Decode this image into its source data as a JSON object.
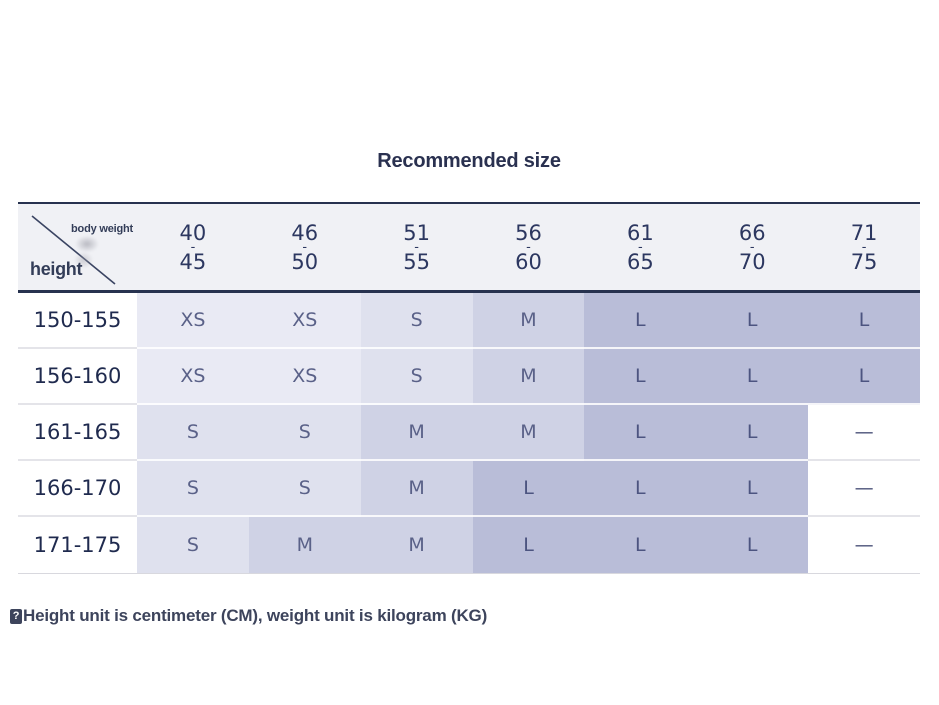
{
  "title": "Recommended size",
  "corner": {
    "top_label": "body weight",
    "bottom_label": "height"
  },
  "note": {
    "marker": "?",
    "text": "Height unit is centimeter (CM), weight unit is kilogram (KG)"
  },
  "chart_data": {
    "type": "table",
    "title": "Recommended size",
    "columns": [
      "40-45",
      "46-50",
      "51-55",
      "56-60",
      "61-65",
      "66-70",
      "71-75"
    ],
    "column_axis_label": "body weight",
    "row_axis_label": "height",
    "rows": [
      "150-155",
      "156-160",
      "161-165",
      "166-170",
      "171-175"
    ],
    "values": [
      [
        "XS",
        "XS",
        "S",
        "M",
        "L",
        "L",
        "L"
      ],
      [
        "XS",
        "XS",
        "S",
        "M",
        "L",
        "L",
        "L"
      ],
      [
        "S",
        "S",
        "M",
        "M",
        "L",
        "L",
        "—"
      ],
      [
        "S",
        "S",
        "M",
        "L",
        "L",
        "L",
        "—"
      ],
      [
        "S",
        "M",
        "M",
        "L",
        "L",
        "L",
        "—"
      ]
    ],
    "legend": "cell shading darkens with size: XS lightest, then S, M, L darkest; — on white means not available",
    "units": "height in CM, weight in KG"
  },
  "colors": {
    "accent_navy": "#27324f",
    "header_bg": "#f0f1f5",
    "size_xs_bg": "#e9eaf4",
    "size_s_bg": "#dfe1ee",
    "size_m_bg": "#cfd2e5",
    "size_l_bg": "#b9bdd8",
    "cell_text": "#5a6188",
    "number_text": "#2c3760",
    "note_text": "#3d445c"
  }
}
